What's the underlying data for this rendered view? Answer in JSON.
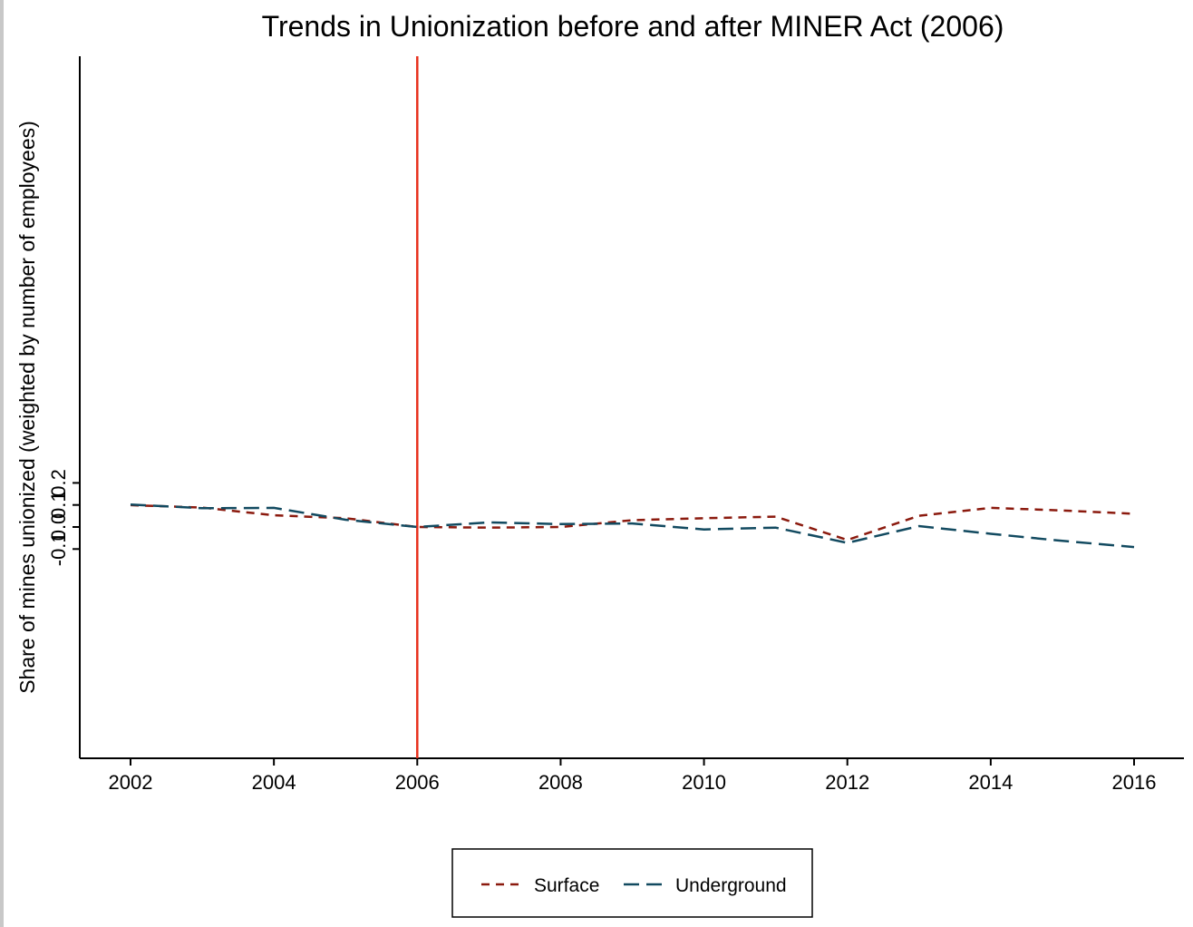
{
  "chart_data": {
    "type": "line",
    "title": "Trends in Unionization before and after MINER Act (2006)",
    "xlabel": "",
    "ylabel": "Share of mines unionized (weighted by number of employees)",
    "xlim": [
      2001.3,
      2016.7
    ],
    "ylim": [
      -0.105,
      0.215
    ],
    "x": [
      2002,
      2003,
      2004,
      2005,
      2006,
      2007,
      2008,
      2009,
      2010,
      2011,
      2012,
      2013,
      2014,
      2015,
      2016
    ],
    "xticks": [
      2002,
      2004,
      2006,
      2008,
      2010,
      2012,
      2014,
      2016
    ],
    "xtick_labels": [
      "2002",
      "2004",
      "2006",
      "2008",
      "2010",
      "2012",
      "2014",
      "2016"
    ],
    "yticks": [
      -0.1,
      0.0,
      0.1,
      0.2
    ],
    "ytick_labels": [
      "-0.1",
      "0.0",
      "0.1",
      "0.2"
    ],
    "grid": false,
    "vline": {
      "x": 2006,
      "color": "#e8301c"
    },
    "legend_position": "bottom-center",
    "series": [
      {
        "name": "Surface",
        "color": "#8b1a0e",
        "dash": "short",
        "values": [
          0.099,
          0.088,
          0.053,
          0.04,
          0.0,
          -0.003,
          0.0,
          0.031,
          0.04,
          0.047,
          -0.059,
          0.051,
          0.087,
          0.075,
          0.06
        ]
      },
      {
        "name": "Underground",
        "color": "#124a60",
        "dash": "long",
        "values": [
          0.102,
          0.085,
          0.087,
          0.033,
          0.0,
          0.021,
          0.013,
          0.016,
          -0.011,
          -0.003,
          -0.072,
          0.004,
          -0.031,
          -0.063,
          -0.091
        ]
      }
    ]
  }
}
